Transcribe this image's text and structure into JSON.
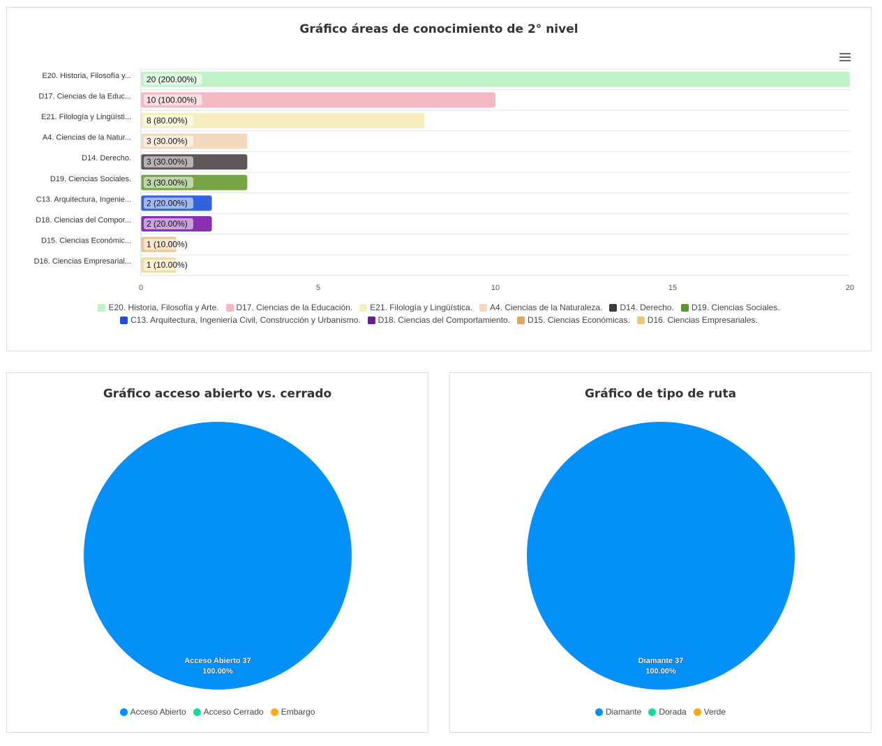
{
  "bar_panel": {
    "title": "Gráfico áreas de conocimiento de 2° nivel",
    "menu_icon": "hamburger-menu-icon"
  },
  "pie1_panel": {
    "title": "Gráfico acceso abierto vs. cerrado"
  },
  "pie2_panel": {
    "title": "Gráfico de tipo de ruta"
  },
  "chart_data": [
    {
      "type": "bar",
      "orientation": "horizontal",
      "title": "Gráfico áreas de conocimiento de 2° nivel",
      "categories": [
        "E20. Historia, Filosofía y...",
        "D17. Ciencias de la Educ...",
        "E21. Filología y Lingüísti...",
        "A4. Ciencias de la Natur...",
        "D14. Derecho.",
        "D19. Ciencias Sociales.",
        "C13. Arquitectura, Ingenie...",
        "D18. Ciencias del Compor...",
        "D15. Ciencias Económic...",
        "D16. Ciencias Empresarial..."
      ],
      "values": [
        20,
        10,
        8,
        3,
        3,
        3,
        2,
        2,
        1,
        1
      ],
      "data_labels": [
        "20 (200.00%)",
        "10 (100.00%)",
        "8 (80.00%)",
        "3 (30.00%)",
        "3 (30.00%)",
        "3 (30.00%)",
        "2 (20.00%)",
        "2 (20.00%)",
        "1 (10.00%)",
        "1 (10.00%)"
      ],
      "colors": [
        "#bff2c8",
        "#f4b8c2",
        "#f6efbd",
        "#f3d8bd",
        "#5f5759",
        "#75a546",
        "#2f63e0",
        "#8a2fb0",
        "#eac692",
        "#f3dc9e"
      ],
      "xlim": [
        0,
        20
      ],
      "xticks": [
        0,
        5,
        10,
        15,
        20
      ],
      "legend": {
        "placement": "bottom",
        "entries": [
          {
            "name": "E20. Historia, Filosofía y Arte.",
            "color": "#bff2c8"
          },
          {
            "name": "D17. Ciencias de la Educación.",
            "color": "#f4b8c2"
          },
          {
            "name": "E21. Filología y Lingüística.",
            "color": "#f6efbd"
          },
          {
            "name": "A4. Ciencias de la Naturaleza.",
            "color": "#f3d8bd"
          },
          {
            "name": "D14. Derecho.",
            "color": "#3f3b3c"
          },
          {
            "name": "D19. Ciencias Sociales.",
            "color": "#5b922e"
          },
          {
            "name": "C13. Arquitectura, Ingeniería Civil, Construcción y Urbanismo.",
            "color": "#1f4fd0"
          },
          {
            "name": "D18. Ciencias del Comportamiento.",
            "color": "#6a1b9a"
          },
          {
            "name": "D15. Ciencias Económicas.",
            "color": "#e0a55e"
          },
          {
            "name": "D16. Ciencias Empresariales.",
            "color": "#eacb7e"
          }
        ]
      },
      "grid": true
    },
    {
      "type": "pie",
      "title": "Gráfico acceso abierto vs. cerrado",
      "slices": [
        {
          "name": "Acceso Abierto",
          "value": 37,
          "percent": "100.00%",
          "color": "#0490f9"
        },
        {
          "name": "Acceso Cerrado",
          "value": 0,
          "color": "#13d8a0"
        },
        {
          "name": "Embargo",
          "value": 0,
          "color": "#f9a91b"
        }
      ],
      "data_label": {
        "line1": "Acceso Abierto 37",
        "line2": "100.00%"
      },
      "legend_placement": "bottom"
    },
    {
      "type": "pie",
      "title": "Gráfico de tipo de ruta",
      "slices": [
        {
          "name": "Diamante",
          "value": 37,
          "percent": "100.00%",
          "color": "#0490f9"
        },
        {
          "name": "Dorada",
          "value": 0,
          "color": "#13d8a0"
        },
        {
          "name": "Verde",
          "value": 0,
          "color": "#f9a91b"
        }
      ],
      "data_label": {
        "line1": "Diamante 37",
        "line2": "100.00%"
      },
      "legend_placement": "bottom"
    }
  ]
}
